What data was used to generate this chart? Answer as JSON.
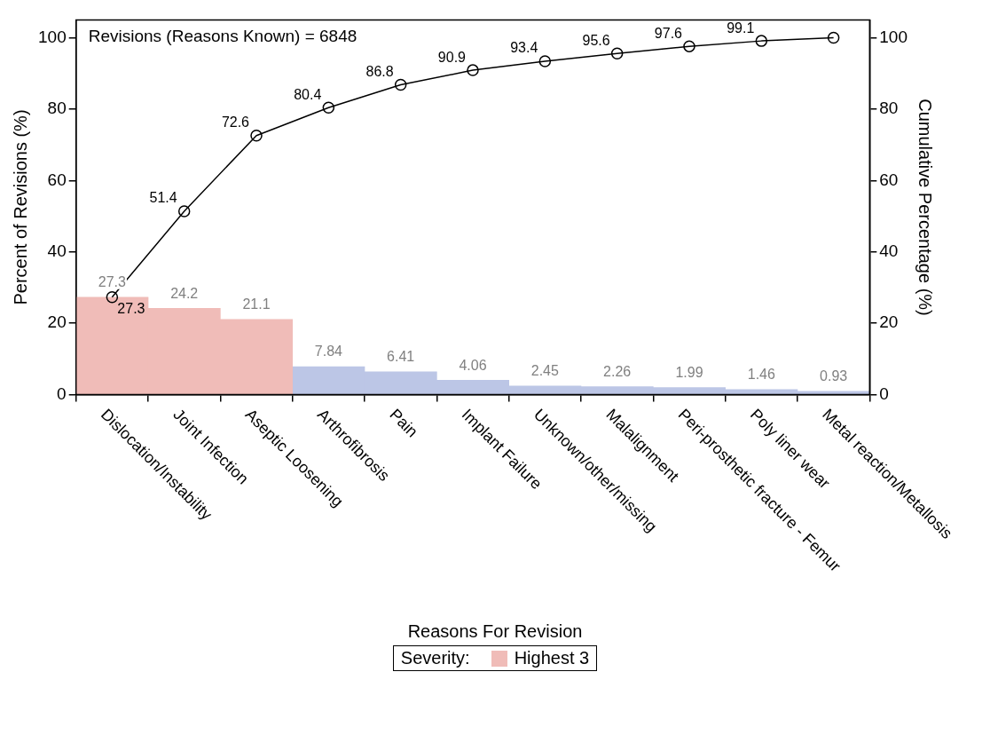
{
  "chart_data": {
    "type": "bar",
    "categories": [
      "Dislocation/Instability",
      "Joint Infection",
      "Aseptic Loosening",
      "Arthrofibrosis",
      "Pain",
      "Implant Failure",
      "Unknown/other/missing",
      "Malalignment",
      "Peri-prosthetic fracture - Femur",
      "Poly liner wear",
      "Metal reaction/Metallosis"
    ],
    "series": [
      {
        "name": "Highest 3",
        "color": "#f0bcb8",
        "values": [
          27.3,
          24.2,
          21.1,
          null,
          null,
          null,
          null,
          null,
          null,
          null,
          null
        ]
      },
      {
        "color": "#bcc6e6",
        "values": [
          null,
          null,
          null,
          7.84,
          6.41,
          4.06,
          2.45,
          2.26,
          1.99,
          1.46,
          0.93
        ]
      },
      {
        "type": "line",
        "axis": "y2",
        "color": "#000000",
        "marker": "circle",
        "values": [
          27.3,
          51.4,
          72.6,
          80.4,
          86.8,
          90.9,
          93.4,
          95.6,
          97.6,
          99.1,
          100
        ],
        "value_labels": [
          "27.3",
          "51.4",
          "72.6",
          "80.4",
          "86.8",
          "90.9",
          "93.4",
          "95.6",
          "97.6",
          "99.1",
          null
        ]
      }
    ],
    "data_labels": true,
    "xlabel": "Reasons For Revision",
    "ylabel": "Percent of Revisions (%)",
    "y2label": "Cumulative Percentage (%)",
    "ylim": [
      0,
      105
    ],
    "yticks": [
      0,
      20,
      40,
      60,
      80,
      100
    ],
    "y2lim": [
      0,
      105
    ],
    "y2ticks": [
      0,
      20,
      40,
      60,
      80,
      100
    ],
    "legend_title": "Severity:",
    "legend": "bottom",
    "grid": false,
    "annotations": [
      "Revisions (Reasons Known) = 6848"
    ]
  }
}
